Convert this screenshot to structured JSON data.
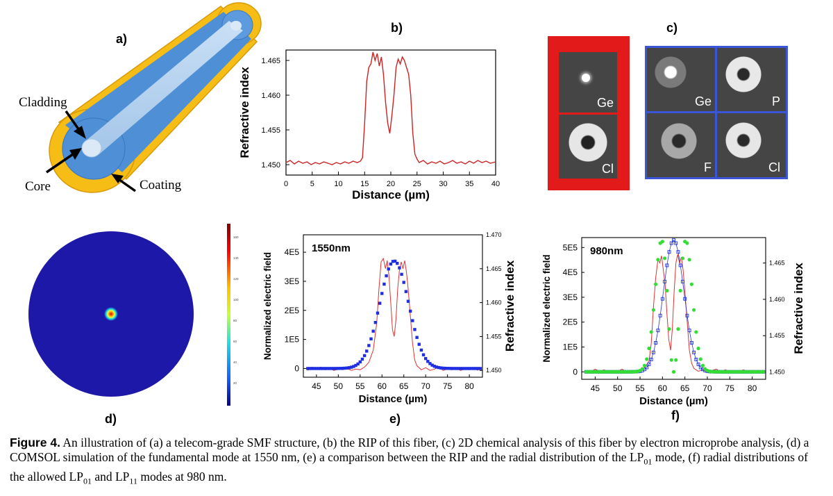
{
  "panels": {
    "a": {
      "letter": "a)",
      "labels": {
        "cladding": "Cladding",
        "core": "Core",
        "coating": "Coating"
      }
    },
    "b": {
      "letter": "b)",
      "chart_data": {
        "type": "line",
        "xlabel": "Distance (µm)",
        "ylabel": "Refractive index",
        "xlim": [
          0,
          40
        ],
        "ylim": [
          1.4485,
          1.4665
        ],
        "xticks": [
          0,
          5,
          10,
          15,
          20,
          25,
          30,
          35,
          40
        ],
        "yticks": [
          "1.450",
          "1.455",
          "1.460",
          "1.465"
        ],
        "color": "#cc2222",
        "x": [
          0,
          0.8,
          1.6,
          2.4,
          3.2,
          4,
          4.8,
          5.6,
          6.4,
          7.2,
          8,
          8.8,
          9.6,
          10.4,
          11.2,
          12,
          12.8,
          13.6,
          14.2,
          14.6,
          15,
          15.4,
          15.8,
          16.2,
          16.6,
          17,
          17.4,
          17.8,
          18.2,
          18.6,
          19,
          19.4,
          19.8,
          20.2,
          20.6,
          21,
          21.4,
          21.8,
          22.2,
          22.6,
          23,
          23.4,
          23.8,
          24.2,
          24.6,
          25,
          25.4,
          26.2,
          27,
          27.8,
          28.6,
          29.4,
          30.2,
          31,
          31.8,
          32.6,
          33.4,
          34.2,
          35,
          35.8,
          36.6,
          37.4,
          38.2,
          39,
          40
        ],
        "y": [
          1.4503,
          1.4506,
          1.4501,
          1.4505,
          1.4502,
          1.4504,
          1.45,
          1.4503,
          1.4501,
          1.4504,
          1.4502,
          1.45,
          1.4503,
          1.4501,
          1.4504,
          1.4502,
          1.4505,
          1.4503,
          1.4505,
          1.451,
          1.456,
          1.462,
          1.464,
          1.4645,
          1.4662,
          1.465,
          1.466,
          1.4642,
          1.4655,
          1.463,
          1.459,
          1.456,
          1.4545,
          1.457,
          1.46,
          1.464,
          1.4652,
          1.4645,
          1.4655,
          1.465,
          1.464,
          1.463,
          1.46,
          1.4545,
          1.4515,
          1.4508,
          1.4503,
          1.4506,
          1.4501,
          1.4504,
          1.4502,
          1.4505,
          1.4501,
          1.4503,
          1.4506,
          1.4502,
          1.4504,
          1.4501,
          1.4505,
          1.4502,
          1.4506,
          1.4503,
          1.4505,
          1.4502,
          1.4504
        ]
      }
    },
    "c": {
      "letter": "c)",
      "labels": {
        "red_top": "Ge",
        "red_bottom": "Cl",
        "blue_tl": "Ge",
        "blue_tr": "P",
        "blue_bl": "F",
        "blue_br": "Cl"
      },
      "colors": {
        "red_frame": "#e31a1a",
        "blue_frame": "#3a55d8",
        "tile": "#454545"
      }
    },
    "d": {
      "letter": "d)",
      "colorbar_ticks": [
        "160",
        "140",
        "120",
        "100",
        "80",
        "60",
        "40",
        "20"
      ],
      "colors": {
        "disk": "#1e18a8"
      }
    },
    "e": {
      "letter": "e)",
      "wavelength": "1550nm",
      "chart_data": {
        "type": "line",
        "xlabel": "Distance (µm)",
        "ylabel": "Normalized electric field",
        "y2label": "Refractive index",
        "xlim": [
          42,
          83
        ],
        "ylim": [
          -30000,
          460000
        ],
        "y2lim": [
          1.449,
          1.47
        ],
        "xticks": [
          45,
          50,
          55,
          60,
          65,
          70,
          75,
          80
        ],
        "yticks": [
          "0",
          "1E5",
          "2E5",
          "3E5",
          "4E5"
        ],
        "y2ticks": [
          "1.450",
          "1.455",
          "1.460",
          "1.465",
          "1.470"
        ],
        "series": [
          {
            "center": 62.8,
            "width": 3.3,
            "amp": 370000,
            "color": "#1f2ee0"
          }
        ],
        "rip": {
          "color": "#dd3333",
          "x": [
            43,
            44,
            45,
            46,
            47,
            48,
            49,
            50,
            51,
            52,
            53,
            54,
            55,
            56,
            57,
            58,
            58.8,
            59.3,
            59.8,
            60.3,
            60.8,
            61.2,
            61.6,
            62,
            62.4,
            62.8,
            63.2,
            63.6,
            64,
            64.4,
            64.8,
            65.2,
            65.6,
            66,
            66.5,
            67,
            67.5,
            68,
            69,
            70,
            71,
            72,
            73,
            74,
            75,
            76,
            77,
            78,
            79,
            80,
            81,
            82
          ],
          "y": [
            1.45,
            1.4505,
            1.4502,
            1.4505,
            1.4501,
            1.4503,
            1.45,
            1.4502,
            1.4501,
            1.4503,
            1.45,
            1.4502,
            1.4501,
            1.4505,
            1.4512,
            1.453,
            1.457,
            1.462,
            1.466,
            1.4665,
            1.465,
            1.4662,
            1.464,
            1.46,
            1.456,
            1.455,
            1.4575,
            1.462,
            1.4648,
            1.466,
            1.465,
            1.4662,
            1.4645,
            1.462,
            1.458,
            1.454,
            1.4515,
            1.4507,
            1.4501,
            1.4504,
            1.45,
            1.4502,
            1.4505,
            1.45,
            1.4502,
            1.4501,
            1.4503,
            1.45,
            1.4502,
            1.4501,
            1.4503,
            1.45
          ]
        }
      }
    },
    "f": {
      "letter": "f)",
      "wavelength": "980nm",
      "chart_data": {
        "type": "line",
        "xlabel": "Distance (µm)",
        "ylabel": "Normalized electric field",
        "y2label": "Refractive index",
        "xlim": [
          42,
          83
        ],
        "ylim": [
          -30000,
          540000
        ],
        "y2lim": [
          1.449,
          1.4685
        ],
        "xticks": [
          45,
          50,
          55,
          60,
          65,
          70,
          75,
          80
        ],
        "yticks": [
          "0",
          "1E5",
          "2E5",
          "3E5",
          "4E5",
          "5E5"
        ],
        "y2ticks": [
          "1.450",
          "1.455",
          "1.460",
          "1.465"
        ],
        "series": [
          {
            "kind": "lp01",
            "center": 62.5,
            "width": 2.3,
            "amp": 530000,
            "color": "#2233dd"
          },
          {
            "kind": "lp11",
            "center": 62.5,
            "width": 2.7,
            "amp": 530000,
            "color": "#33dd33"
          }
        ],
        "rip": {
          "color": "#dd3333",
          "x": [
            43,
            44,
            45,
            46,
            47,
            48,
            49,
            50,
            51,
            52,
            53,
            54,
            55,
            56,
            57,
            57.5,
            58,
            58.5,
            59,
            59.4,
            59.8,
            60.2,
            60.6,
            61,
            61.4,
            61.8,
            62.2,
            62.6,
            63,
            63.4,
            63.8,
            64.2,
            64.6,
            65,
            65.5,
            66,
            66.5,
            67,
            68,
            69,
            70,
            71,
            72,
            73,
            74,
            75,
            76,
            77,
            78,
            79,
            80,
            81,
            82
          ],
          "y": [
            1.4502,
            1.45,
            1.4504,
            1.4501,
            1.4503,
            1.45,
            1.4502,
            1.4501,
            1.4504,
            1.45,
            1.4502,
            1.4501,
            1.4503,
            1.4506,
            1.4515,
            1.454,
            1.459,
            1.463,
            1.4655,
            1.465,
            1.466,
            1.464,
            1.462,
            1.458,
            1.4545,
            1.453,
            1.456,
            1.461,
            1.465,
            1.4662,
            1.465,
            1.4658,
            1.464,
            1.461,
            1.457,
            1.453,
            1.4512,
            1.4505,
            1.4501,
            1.4503,
            1.45,
            1.4502,
            1.4504,
            1.45,
            1.4503,
            1.4501,
            1.4502,
            1.45,
            1.4503,
            1.4501,
            1.4502,
            1.45,
            1.4502
          ]
        }
      }
    }
  },
  "caption": {
    "label": "Figure 4.",
    "part1": " An illustration of (a) a telecom-grade SMF structure, (b) the RIP of this fiber, (c) 2D chemical analysis of this fiber by electron microprobe analysis, (d) a COMSOL simulation of the fundamental mode at 1550 nm, (e) a comparison between the RIP and the radial distribution of the LP",
    "sub1": "01",
    "part2": " mode, (f) radial distributions of the allowed LP",
    "sub2": "01",
    "part3": " and LP",
    "sub3": "11",
    "part4": " modes at 980 nm."
  }
}
